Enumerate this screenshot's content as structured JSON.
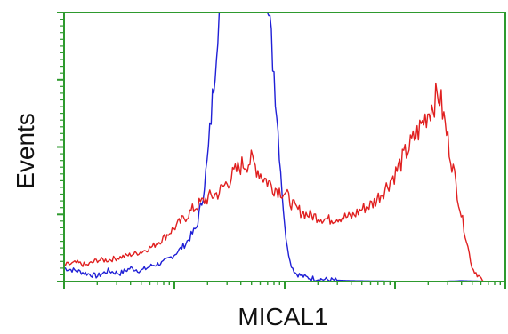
{
  "chart_data": {
    "type": "line",
    "title": "",
    "xlabel": "MICAL1",
    "ylabel": "Events",
    "x_scale": "log",
    "xlim": [
      1,
      10000
    ],
    "ylim": [
      0,
      100
    ],
    "grid": false,
    "legend": "none",
    "frame_color": "#2e9a2e",
    "tick_color": "#2e9a2e",
    "series": [
      {
        "color": "#1f1fd6",
        "x": [
          1.0,
          1.3,
          1.6,
          2.0,
          2.5,
          3.2,
          4.0,
          5.0,
          6.3,
          7.9,
          10.0,
          12.6,
          15.8,
          17.8,
          20.0,
          22.4,
          25.1,
          28.2,
          31.6,
          39.8,
          50.1,
          63.1,
          70.8,
          79.4,
          89.1,
          100.0,
          112.2,
          125.9,
          158.5,
          199.5,
          251.2,
          398.1,
          631.0,
          1000.0,
          1584.9,
          2511.9,
          3981.1,
          6309.6,
          10000.0
        ],
        "y": [
          5,
          4,
          3,
          2,
          4,
          3,
          5,
          4,
          6,
          7,
          10,
          14,
          20,
          30,
          45,
          70,
          100,
          100,
          100,
          100,
          100,
          100,
          100,
          80,
          50,
          20,
          7,
          3,
          1.5,
          1,
          0.6,
          0.3,
          0.2,
          0.1,
          0,
          0,
          0.3,
          0.1,
          0
        ]
      },
      {
        "color": "#e02020",
        "x": [
          1.0,
          1.3,
          1.6,
          2.0,
          2.5,
          3.2,
          4.0,
          5.0,
          6.3,
          7.9,
          10.0,
          12.6,
          15.8,
          20.0,
          25.1,
          31.6,
          39.8,
          50.1,
          63.1,
          79.4,
          100.0,
          125.9,
          158.5,
          199.5,
          251.2,
          316.2,
          398.1,
          501.2,
          631.0,
          794.3,
          1000.0,
          1258.9,
          1584.9,
          1995.3,
          2511.9,
          3162.3,
          3981.1,
          5011.9,
          6309.6,
          10000.0
        ],
        "y": [
          6,
          7,
          6,
          8,
          8,
          9,
          10,
          11,
          13,
          16,
          20,
          24,
          28,
          31,
          33,
          38,
          43,
          45,
          39,
          35,
          33,
          27,
          25,
          24,
          23,
          24,
          24,
          27,
          29,
          34,
          40,
          48,
          55,
          63,
          70,
          48,
          25,
          5,
          0,
          0
        ]
      }
    ]
  }
}
